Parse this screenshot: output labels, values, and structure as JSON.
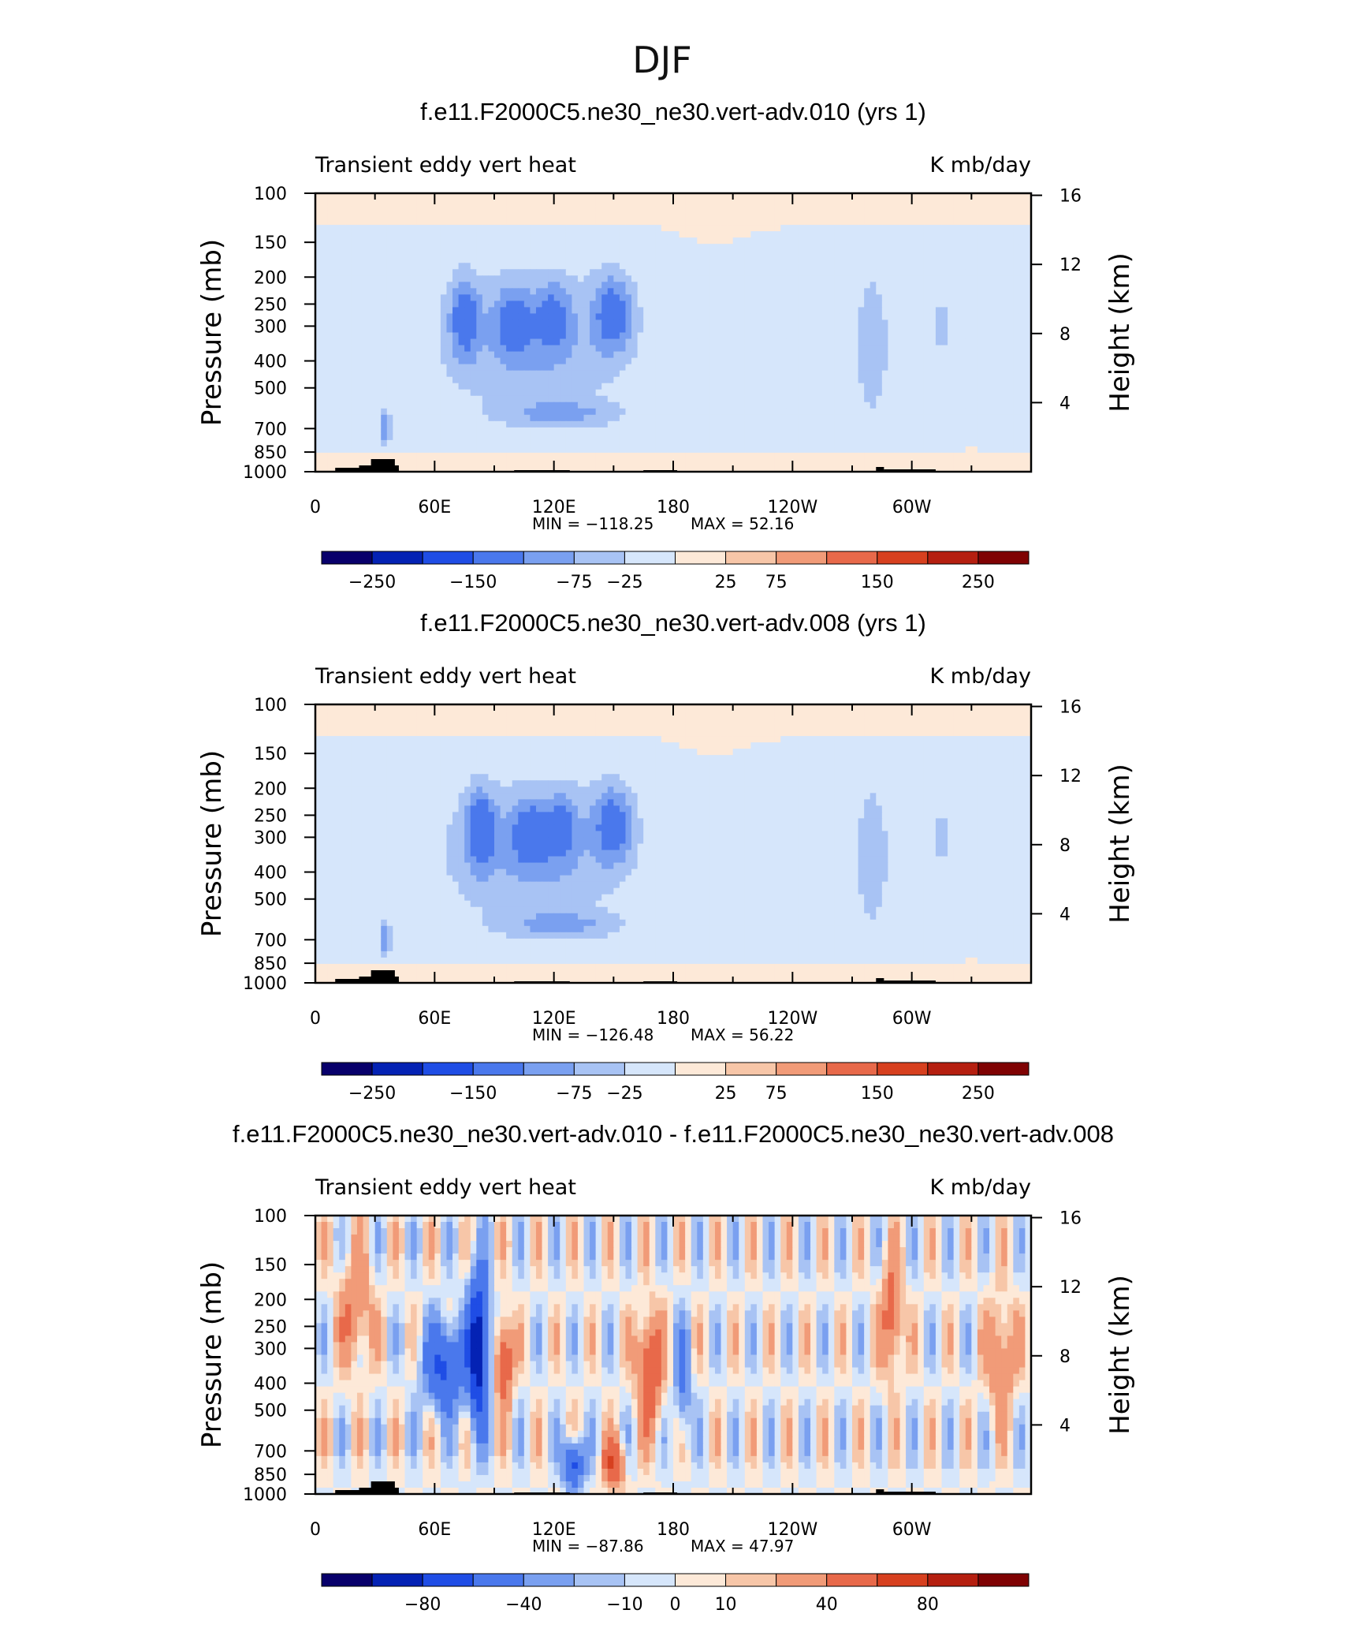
{
  "figure_title": "DJF",
  "chart_data": [
    {
      "type": "heatmap",
      "title": "f.e11.F2000C5.ne30_ne30.vert-adv.010 (yrs 1)",
      "left_label": "Transient eddy vert heat",
      "right_label": "K mb/day",
      "ylabel": "Pressure (mb)",
      "ylabel2": "Height (km)",
      "x_ticks": [
        "0",
        "60E",
        "120E",
        "180",
        "120W",
        "60W"
      ],
      "y_ticks": [
        "100",
        "150",
        "200",
        "250",
        "300",
        "400",
        "500",
        "700",
        "850",
        "1000"
      ],
      "y2_ticks": [
        "16",
        "12",
        "8",
        "4"
      ],
      "ylim": [
        1000,
        100
      ],
      "min_label": "MIN = −118.25",
      "max_label": "MAX =   52.16",
      "min": -118.25,
      "max": 52.16,
      "colorbar_labels": [
        "−250",
        "−150",
        "−75",
        "−25",
        "25",
        "75",
        "150",
        "250"
      ],
      "colorbar_colors": [
        "#08006b",
        "#0422b4",
        "#1f4de5",
        "#4a78ec",
        "#7aa0f0",
        "#a8c3f4",
        "#d6e6fb",
        "#fde9d8",
        "#f7c6a8",
        "#f19b78",
        "#e8694a",
        "#d7401f",
        "#b51f10",
        "#7f0203"
      ]
    },
    {
      "type": "heatmap",
      "title": "f.e11.F2000C5.ne30_ne30.vert-adv.008 (yrs 1)",
      "left_label": "Transient eddy vert heat",
      "right_label": "K mb/day",
      "ylabel": "Pressure (mb)",
      "ylabel2": "Height (km)",
      "x_ticks": [
        "0",
        "60E",
        "120E",
        "180",
        "120W",
        "60W"
      ],
      "y_ticks": [
        "100",
        "150",
        "200",
        "250",
        "300",
        "400",
        "500",
        "700",
        "850",
        "1000"
      ],
      "y2_ticks": [
        "16",
        "12",
        "8",
        "4"
      ],
      "ylim": [
        1000,
        100
      ],
      "min_label": "MIN = −126.48",
      "max_label": "MAX =   56.22",
      "min": -126.48,
      "max": 56.22,
      "colorbar_labels": [
        "−250",
        "−150",
        "−75",
        "−25",
        "25",
        "75",
        "150",
        "250"
      ],
      "colorbar_colors": [
        "#08006b",
        "#0422b4",
        "#1f4de5",
        "#4a78ec",
        "#7aa0f0",
        "#a8c3f4",
        "#d6e6fb",
        "#fde9d8",
        "#f7c6a8",
        "#f19b78",
        "#e8694a",
        "#d7401f",
        "#b51f10",
        "#7f0203"
      ]
    },
    {
      "type": "heatmap",
      "title": "f.e11.F2000C5.ne30_ne30.vert-adv.010 - f.e11.F2000C5.ne30_ne30.vert-adv.008",
      "left_label": "Transient eddy vert heat",
      "right_label": "K mb/day",
      "ylabel": "Pressure (mb)",
      "ylabel2": "Height (km)",
      "x_ticks": [
        "0",
        "60E",
        "120E",
        "180",
        "120W",
        "60W"
      ],
      "y_ticks": [
        "100",
        "150",
        "200",
        "250",
        "300",
        "400",
        "500",
        "700",
        "850",
        "1000"
      ],
      "y2_ticks": [
        "16",
        "12",
        "8",
        "4"
      ],
      "ylim": [
        1000,
        100
      ],
      "min_label": "MIN =  −87.86",
      "max_label": "MAX =   47.97",
      "min": -87.86,
      "max": 47.97,
      "colorbar_labels": [
        "−80",
        "−40",
        "−10",
        "0",
        "10",
        "40",
        "80"
      ],
      "colorbar_colors": [
        "#08006b",
        "#0422b4",
        "#1f4de5",
        "#4a78ec",
        "#7aa0f0",
        "#a8c3f4",
        "#d6e6fb",
        "#fde9d8",
        "#f7c6a8",
        "#f19b78",
        "#e8694a",
        "#d7401f",
        "#b51f10",
        "#7f0203"
      ]
    }
  ]
}
